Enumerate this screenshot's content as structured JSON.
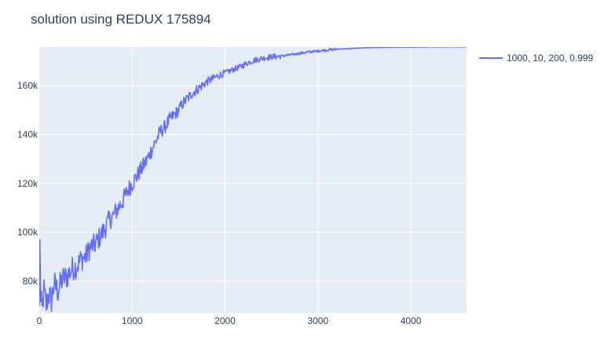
{
  "chart_data": {
    "type": "line",
    "title": "solution using REDUX 175894",
    "xlabel": "",
    "ylabel": "",
    "xlim": [
      0,
      4600
    ],
    "ylim": [
      67000,
      175800
    ],
    "x_ticks": [
      0,
      1000,
      2000,
      3000,
      4000
    ],
    "x_tick_labels": [
      "0",
      "1000",
      "2000",
      "3000",
      "4000"
    ],
    "y_ticks": [
      80000,
      100000,
      120000,
      140000,
      160000
    ],
    "y_tick_labels": [
      "80k",
      "100k",
      "120k",
      "140k",
      "160k"
    ],
    "grid": true,
    "legend_position": "top-right",
    "colors": {
      "line": "#636efa",
      "plot_bg": "#e5ecf6",
      "grid": "#ffffff",
      "text": "#2a3f5f"
    },
    "series": [
      {
        "name": "1000, 10, 200, 0.999",
        "points": [
          [
            0,
            70000
          ],
          [
            5,
            97000
          ],
          [
            15,
            74000
          ],
          [
            30,
            68000
          ],
          [
            50,
            76000
          ],
          [
            75,
            70000
          ],
          [
            100,
            75000
          ],
          [
            130,
            72000
          ],
          [
            160,
            79000
          ],
          [
            200,
            76000
          ],
          [
            250,
            81000
          ],
          [
            300,
            82000
          ],
          [
            350,
            85000
          ],
          [
            400,
            86000
          ],
          [
            450,
            89000
          ],
          [
            500,
            90000
          ],
          [
            550,
            94000
          ],
          [
            600,
            95000
          ],
          [
            650,
            98000
          ],
          [
            700,
            101000
          ],
          [
            750,
            105000
          ],
          [
            800,
            107000
          ],
          [
            850,
            110000
          ],
          [
            900,
            113000
          ],
          [
            950,
            117000
          ],
          [
            1000,
            120000
          ],
          [
            1050,
            123000
          ],
          [
            1100,
            126000
          ],
          [
            1150,
            129000
          ],
          [
            1200,
            133000
          ],
          [
            1250,
            137000
          ],
          [
            1300,
            141000
          ],
          [
            1350,
            143000
          ],
          [
            1400,
            146000
          ],
          [
            1450,
            148000
          ],
          [
            1500,
            150000
          ],
          [
            1550,
            153000
          ],
          [
            1600,
            155000
          ],
          [
            1650,
            157000
          ],
          [
            1700,
            158500
          ],
          [
            1750,
            160000
          ],
          [
            1800,
            161500
          ],
          [
            1850,
            162500
          ],
          [
            1900,
            163500
          ],
          [
            1950,
            164500
          ],
          [
            2000,
            165200
          ],
          [
            2050,
            166000
          ],
          [
            2100,
            166800
          ],
          [
            2150,
            167500
          ],
          [
            2200,
            168500
          ],
          [
            2250,
            169500
          ],
          [
            2300,
            170200
          ],
          [
            2350,
            170800
          ],
          [
            2400,
            171200
          ],
          [
            2500,
            171800
          ],
          [
            2600,
            172100
          ],
          [
            2700,
            172600
          ],
          [
            2800,
            173200
          ],
          [
            2900,
            173800
          ],
          [
            3000,
            174200
          ],
          [
            3100,
            174600
          ],
          [
            3200,
            174900
          ],
          [
            3300,
            175100
          ],
          [
            3400,
            175300
          ],
          [
            3500,
            175500
          ],
          [
            3600,
            175600
          ],
          [
            3700,
            175700
          ],
          [
            3800,
            175750
          ],
          [
            3900,
            175800
          ],
          [
            4000,
            175800
          ],
          [
            4200,
            175850
          ],
          [
            4400,
            175880
          ],
          [
            4600,
            175894
          ]
        ]
      }
    ]
  }
}
